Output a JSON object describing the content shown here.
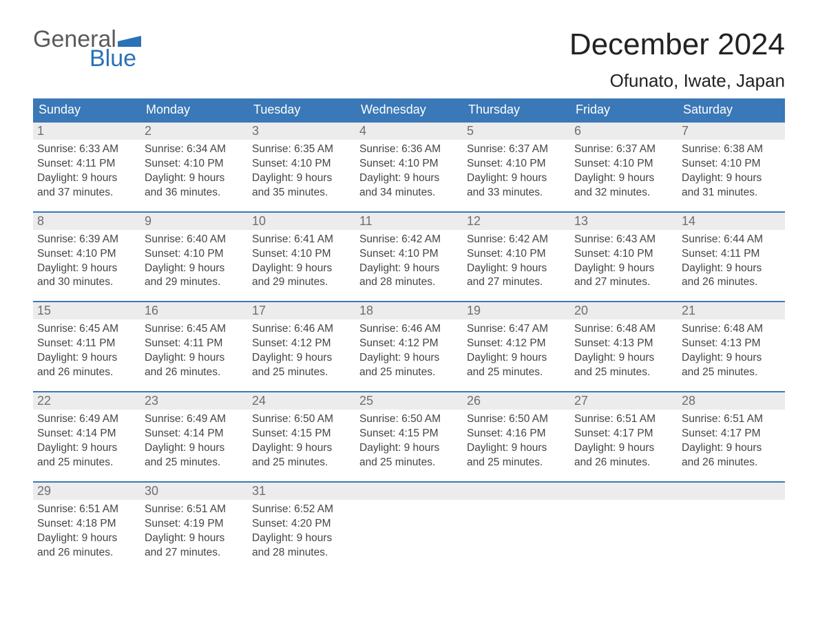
{
  "logo": {
    "text_top": "General",
    "text_bottom": "Blue",
    "accent_color": "#2a71b8"
  },
  "title": "December 2024",
  "location": "Ofunato, Iwate, Japan",
  "colors": {
    "header_bg": "#3a78b7",
    "header_text": "#ffffff",
    "daynum_bg": "#ececec",
    "daynum_text": "#6e6e6e",
    "border_top": "#3a78b7",
    "body_text": "#444444",
    "background": "#ffffff"
  },
  "day_headers": [
    "Sunday",
    "Monday",
    "Tuesday",
    "Wednesday",
    "Thursday",
    "Friday",
    "Saturday"
  ],
  "weeks": [
    [
      {
        "n": "1",
        "sunrise": "6:33 AM",
        "sunset": "4:11 PM",
        "dl1": "9 hours",
        "dl2": "and 37 minutes."
      },
      {
        "n": "2",
        "sunrise": "6:34 AM",
        "sunset": "4:10 PM",
        "dl1": "9 hours",
        "dl2": "and 36 minutes."
      },
      {
        "n": "3",
        "sunrise": "6:35 AM",
        "sunset": "4:10 PM",
        "dl1": "9 hours",
        "dl2": "and 35 minutes."
      },
      {
        "n": "4",
        "sunrise": "6:36 AM",
        "sunset": "4:10 PM",
        "dl1": "9 hours",
        "dl2": "and 34 minutes."
      },
      {
        "n": "5",
        "sunrise": "6:37 AM",
        "sunset": "4:10 PM",
        "dl1": "9 hours",
        "dl2": "and 33 minutes."
      },
      {
        "n": "6",
        "sunrise": "6:37 AM",
        "sunset": "4:10 PM",
        "dl1": "9 hours",
        "dl2": "and 32 minutes."
      },
      {
        "n": "7",
        "sunrise": "6:38 AM",
        "sunset": "4:10 PM",
        "dl1": "9 hours",
        "dl2": "and 31 minutes."
      }
    ],
    [
      {
        "n": "8",
        "sunrise": "6:39 AM",
        "sunset": "4:10 PM",
        "dl1": "9 hours",
        "dl2": "and 30 minutes."
      },
      {
        "n": "9",
        "sunrise": "6:40 AM",
        "sunset": "4:10 PM",
        "dl1": "9 hours",
        "dl2": "and 29 minutes."
      },
      {
        "n": "10",
        "sunrise": "6:41 AM",
        "sunset": "4:10 PM",
        "dl1": "9 hours",
        "dl2": "and 29 minutes."
      },
      {
        "n": "11",
        "sunrise": "6:42 AM",
        "sunset": "4:10 PM",
        "dl1": "9 hours",
        "dl2": "and 28 minutes."
      },
      {
        "n": "12",
        "sunrise": "6:42 AM",
        "sunset": "4:10 PM",
        "dl1": "9 hours",
        "dl2": "and 27 minutes."
      },
      {
        "n": "13",
        "sunrise": "6:43 AM",
        "sunset": "4:10 PM",
        "dl1": "9 hours",
        "dl2": "and 27 minutes."
      },
      {
        "n": "14",
        "sunrise": "6:44 AM",
        "sunset": "4:11 PM",
        "dl1": "9 hours",
        "dl2": "and 26 minutes."
      }
    ],
    [
      {
        "n": "15",
        "sunrise": "6:45 AM",
        "sunset": "4:11 PM",
        "dl1": "9 hours",
        "dl2": "and 26 minutes."
      },
      {
        "n": "16",
        "sunrise": "6:45 AM",
        "sunset": "4:11 PM",
        "dl1": "9 hours",
        "dl2": "and 26 minutes."
      },
      {
        "n": "17",
        "sunrise": "6:46 AM",
        "sunset": "4:12 PM",
        "dl1": "9 hours",
        "dl2": "and 25 minutes."
      },
      {
        "n": "18",
        "sunrise": "6:46 AM",
        "sunset": "4:12 PM",
        "dl1": "9 hours",
        "dl2": "and 25 minutes."
      },
      {
        "n": "19",
        "sunrise": "6:47 AM",
        "sunset": "4:12 PM",
        "dl1": "9 hours",
        "dl2": "and 25 minutes."
      },
      {
        "n": "20",
        "sunrise": "6:48 AM",
        "sunset": "4:13 PM",
        "dl1": "9 hours",
        "dl2": "and 25 minutes."
      },
      {
        "n": "21",
        "sunrise": "6:48 AM",
        "sunset": "4:13 PM",
        "dl1": "9 hours",
        "dl2": "and 25 minutes."
      }
    ],
    [
      {
        "n": "22",
        "sunrise": "6:49 AM",
        "sunset": "4:14 PM",
        "dl1": "9 hours",
        "dl2": "and 25 minutes."
      },
      {
        "n": "23",
        "sunrise": "6:49 AM",
        "sunset": "4:14 PM",
        "dl1": "9 hours",
        "dl2": "and 25 minutes."
      },
      {
        "n": "24",
        "sunrise": "6:50 AM",
        "sunset": "4:15 PM",
        "dl1": "9 hours",
        "dl2": "and 25 minutes."
      },
      {
        "n": "25",
        "sunrise": "6:50 AM",
        "sunset": "4:15 PM",
        "dl1": "9 hours",
        "dl2": "and 25 minutes."
      },
      {
        "n": "26",
        "sunrise": "6:50 AM",
        "sunset": "4:16 PM",
        "dl1": "9 hours",
        "dl2": "and 25 minutes."
      },
      {
        "n": "27",
        "sunrise": "6:51 AM",
        "sunset": "4:17 PM",
        "dl1": "9 hours",
        "dl2": "and 26 minutes."
      },
      {
        "n": "28",
        "sunrise": "6:51 AM",
        "sunset": "4:17 PM",
        "dl1": "9 hours",
        "dl2": "and 26 minutes."
      }
    ],
    [
      {
        "n": "29",
        "sunrise": "6:51 AM",
        "sunset": "4:18 PM",
        "dl1": "9 hours",
        "dl2": "and 26 minutes."
      },
      {
        "n": "30",
        "sunrise": "6:51 AM",
        "sunset": "4:19 PM",
        "dl1": "9 hours",
        "dl2": "and 27 minutes."
      },
      {
        "n": "31",
        "sunrise": "6:52 AM",
        "sunset": "4:20 PM",
        "dl1": "9 hours",
        "dl2": "and 28 minutes."
      },
      {
        "empty": true
      },
      {
        "empty": true
      },
      {
        "empty": true
      },
      {
        "empty": true
      }
    ]
  ],
  "labels": {
    "sunrise": "Sunrise:",
    "sunset": "Sunset:",
    "daylight": "Daylight:"
  }
}
